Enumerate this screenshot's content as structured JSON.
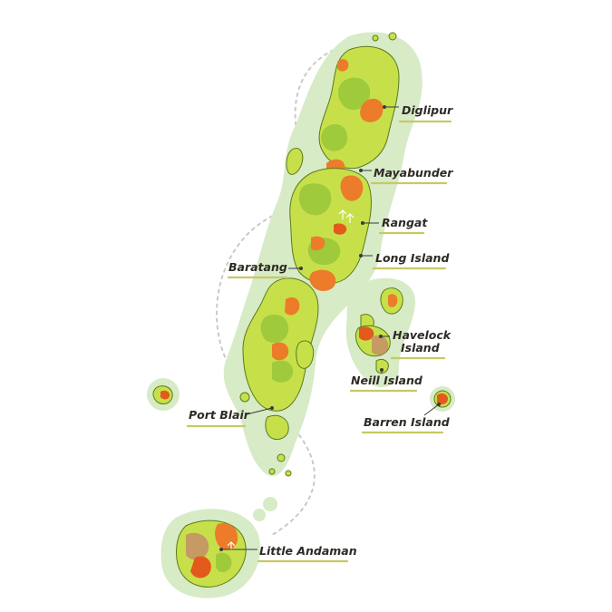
{
  "map": {
    "colors": {
      "halo": "#d6ebc6",
      "land": "#c7e04a",
      "forest": "#9fca3c",
      "orange": "#ec7b2a",
      "red_orange": "#e35a1d",
      "sand": "#c59a63",
      "label_underline": "#c8c864",
      "route_dashes": "#c9c9c9"
    },
    "labels": [
      {
        "id": "diglipur",
        "text": "Diglipur"
      },
      {
        "id": "mayabunder",
        "text": "Mayabunder"
      },
      {
        "id": "rangat",
        "text": "Rangat"
      },
      {
        "id": "long-island",
        "text": "Long Island"
      },
      {
        "id": "baratang",
        "text": "Baratang"
      },
      {
        "id": "havelock",
        "lines": [
          "Havelock",
          "Island"
        ]
      },
      {
        "id": "neill-island",
        "text": "Neill Island"
      },
      {
        "id": "port-blair",
        "text": "Port Blair"
      },
      {
        "id": "barren-island",
        "text": "Barren Island"
      },
      {
        "id": "little-andaman",
        "text": "Little Andaman"
      }
    ]
  }
}
